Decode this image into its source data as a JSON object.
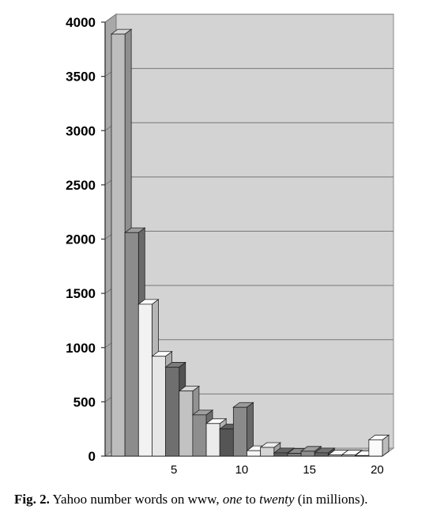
{
  "chart_data": {
    "type": "bar",
    "categories": [
      "1",
      "2",
      "3",
      "4",
      "5",
      "6",
      "7",
      "8",
      "9",
      "10",
      "11",
      "12",
      "13",
      "14",
      "15",
      "16",
      "17",
      "18",
      "19",
      "20"
    ],
    "values": [
      3890,
      2060,
      1400,
      920,
      820,
      600,
      380,
      300,
      250,
      450,
      50,
      80,
      30,
      25,
      45,
      30,
      10,
      10,
      5,
      150
    ],
    "x_tick_labels": [
      "5",
      "10",
      "15",
      "20"
    ],
    "y_tick_labels": [
      "0",
      "500",
      "1000",
      "1500",
      "2000",
      "2500",
      "3000",
      "3500",
      "4000"
    ],
    "ylim": [
      0,
      4000
    ],
    "grid": true,
    "bar_colors": [
      "#bdbdbd",
      "#8c8c8c",
      "#f2f2f2",
      "#e6e6e6",
      "#6f6f6f",
      "#c2c2c2",
      "#8e8e8e",
      "#ececec",
      "#555555",
      "#8a8a8a",
      "#f6f6f6",
      "#d5d5d5",
      "#5a5a5a",
      "#7a7a7a",
      "#8c8c8c",
      "#666666",
      "#dcdcdc",
      "#ededed",
      "#f0f0f0",
      "#fafafa"
    ]
  },
  "caption": {
    "label": "Fig. 2.",
    "text_before": "Yahoo number words on www,",
    "em1": "one",
    "text_mid": "to",
    "em2": "twenty",
    "text_after": "(in millions)."
  }
}
